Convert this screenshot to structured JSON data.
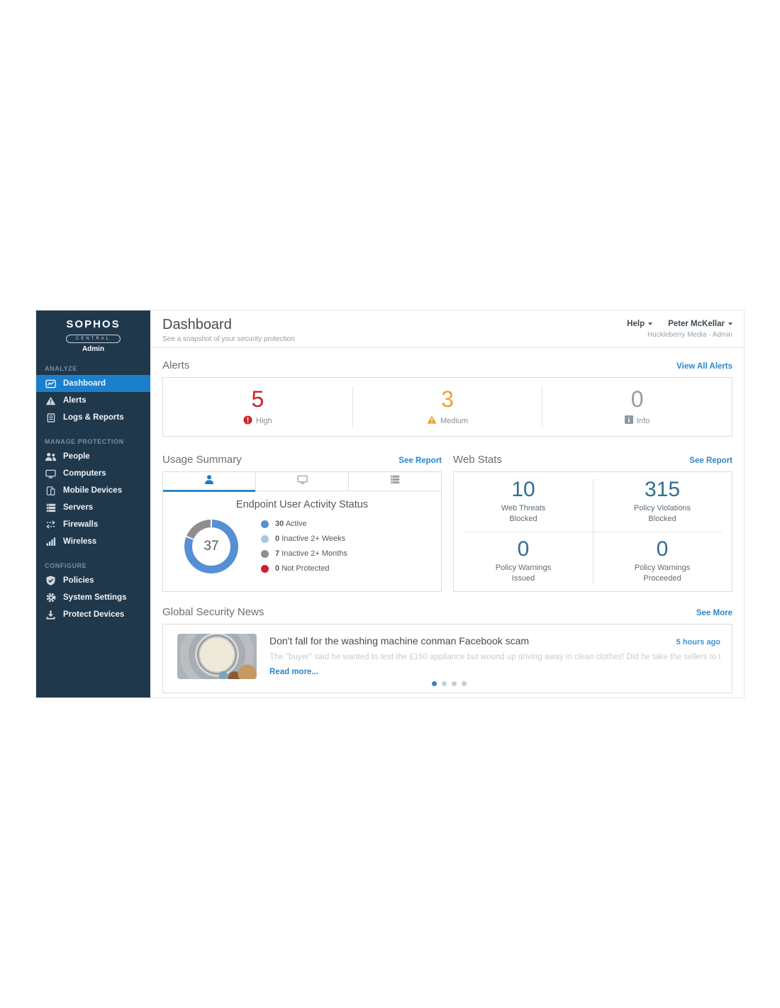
{
  "sidebar": {
    "logo": {
      "brand": "SOPHOS",
      "product": "CENTRAL",
      "role": "Admin"
    },
    "sections": [
      {
        "label": "ANALYZE",
        "items": [
          {
            "label": "Dashboard",
            "icon": "dashboard-icon",
            "active": true
          },
          {
            "label": "Alerts",
            "icon": "alert-triangle-icon"
          },
          {
            "label": "Logs & Reports",
            "icon": "logs-reports-icon"
          }
        ]
      },
      {
        "label": "MANAGE PROTECTION",
        "items": [
          {
            "label": "People",
            "icon": "people-icon"
          },
          {
            "label": "Computers",
            "icon": "computers-icon"
          },
          {
            "label": "Mobile Devices",
            "icon": "mobile-devices-icon"
          },
          {
            "label": "Servers",
            "icon": "servers-icon"
          },
          {
            "label": "Firewalls",
            "icon": "firewalls-icon"
          },
          {
            "label": "Wireless",
            "icon": "wireless-icon"
          }
        ]
      },
      {
        "label": "CONFIGURE",
        "items": [
          {
            "label": "Policies",
            "icon": "policies-icon"
          },
          {
            "label": "System Settings",
            "icon": "system-settings-icon"
          },
          {
            "label": "Protect Devices",
            "icon": "protect-devices-icon"
          }
        ]
      }
    ]
  },
  "header": {
    "title": "Dashboard",
    "subtitle": "See a snapshot of your security protection",
    "help_label": "Help",
    "user_name": "Peter McKellar",
    "account": "Huckleberry Media · Admin"
  },
  "alerts": {
    "title": "Alerts",
    "link": "View All Alerts",
    "items": [
      {
        "count": "5",
        "label": "High",
        "color": "#c9242b",
        "icon": "high-alert-icon"
      },
      {
        "count": "3",
        "label": "Medium",
        "color": "#eda32f",
        "icon": "medium-alert-icon"
      },
      {
        "count": "0",
        "label": "Info",
        "color": "#979ea4",
        "icon": "info-icon"
      }
    ]
  },
  "usage_summary": {
    "title": "Usage Summary",
    "link": "See Report",
    "tabs": [
      {
        "name": "users-tab",
        "icon": "tab-user-icon",
        "active": true
      },
      {
        "name": "computers-tab",
        "icon": "tab-computer-icon",
        "active": false
      },
      {
        "name": "servers-tab",
        "icon": "tab-server-icon",
        "active": false
      }
    ],
    "panel_title": "Endpoint User Activity Status",
    "donut_total": "37",
    "legend": [
      {
        "value": "30",
        "label": "Active",
        "color": "#578fd4"
      },
      {
        "value": "0",
        "label": "Inactive 2+ Weeks",
        "color": "#a9c7e4"
      },
      {
        "value": "7",
        "label": "Inactive 2+ Months",
        "color": "#8e8e8e"
      },
      {
        "value": "0",
        "label": "Not Protected",
        "color": "#cc2128"
      }
    ],
    "chart_data": {
      "type": "pie",
      "title": "Endpoint User Activity Status",
      "total": 37,
      "segments": [
        {
          "label": "Active",
          "value": 30,
          "color": "#578fd4"
        },
        {
          "label": "Inactive 2+ Weeks",
          "value": 0,
          "color": "#a9c7e4"
        },
        {
          "label": "Inactive 2+ Months",
          "value": 7,
          "color": "#8e8e8e"
        },
        {
          "label": "Not Protected",
          "value": 0,
          "color": "#cc2128"
        }
      ]
    }
  },
  "web_stats": {
    "title": "Web Stats",
    "link": "See Report",
    "stats": [
      {
        "value": "10",
        "label": "Web Threats",
        "sublabel": "Blocked"
      },
      {
        "value": "315",
        "label": "Policy Violations",
        "sublabel": "Blocked"
      },
      {
        "value": "0",
        "label": "Policy Warnings",
        "sublabel": "Issued"
      },
      {
        "value": "0",
        "label": "Policy Warnings",
        "sublabel": "Proceeded"
      }
    ]
  },
  "news": {
    "title": "Global Security News",
    "link": "See More",
    "article": {
      "headline": "Don't fall for the washing machine conman Facebook scam",
      "time": "5 hours ago",
      "summary": "The \"buyer\" said he wanted to test the £150 appliance but wound up driving away in clean clothes! Did he take the sellers to the cleaners?!",
      "read_more": "Read more..."
    },
    "dots": [
      {
        "active": true
      },
      {
        "active": false
      },
      {
        "active": false
      },
      {
        "active": false
      }
    ]
  }
}
